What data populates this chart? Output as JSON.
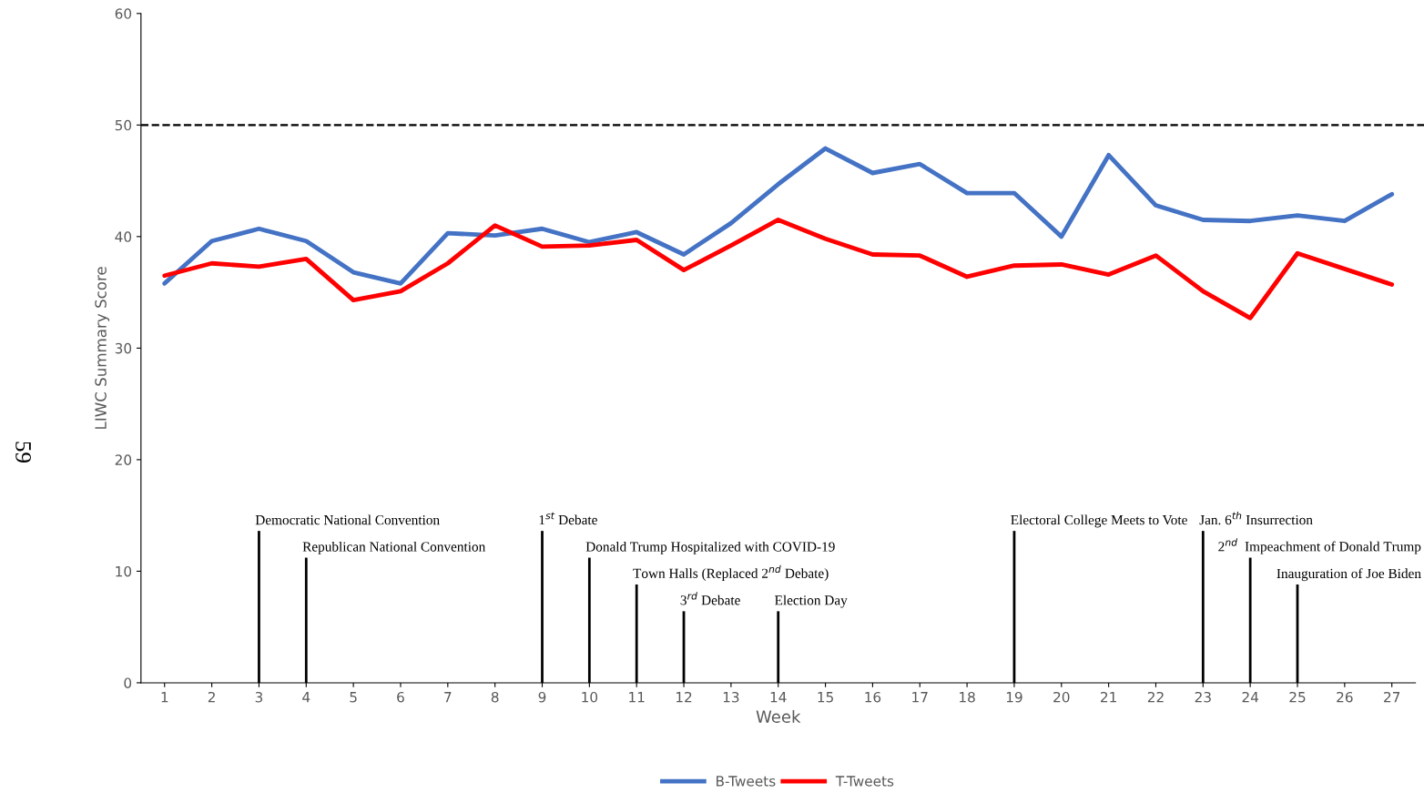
{
  "chart_data": {
    "type": "line",
    "xlabel": "Week",
    "ylabel": "LIWC Summary Score",
    "categories": [
      "1",
      "2",
      "3",
      "4",
      "5",
      "6",
      "7",
      "8",
      "9",
      "10",
      "11",
      "12",
      "13",
      "14",
      "15",
      "16",
      "17",
      "18",
      "19",
      "20",
      "21",
      "22",
      "23",
      "24",
      "25",
      "26",
      "27"
    ],
    "series": [
      {
        "name": "B-Tweets",
        "color": "#4472c4",
        "values": [
          35.8,
          39.6,
          40.7,
          39.6,
          36.8,
          35.8,
          40.3,
          40.1,
          40.7,
          39.5,
          40.4,
          38.4,
          41.2,
          44.7,
          47.9,
          45.7,
          46.5,
          43.9,
          43.9,
          40.0,
          47.3,
          42.8,
          41.5,
          41.4,
          41.9,
          41.4,
          43.8
        ]
      },
      {
        "name": "T-Tweets",
        "color": "#ff0000",
        "values": [
          36.5,
          37.6,
          37.3,
          38.0,
          34.3,
          35.1,
          37.6,
          41.0,
          39.1,
          39.2,
          39.7,
          37.0,
          39.2,
          41.5,
          39.8,
          38.4,
          38.3,
          36.4,
          37.4,
          37.5,
          36.6,
          38.3,
          35.1,
          32.7,
          38.5,
          37.1,
          35.7
        ]
      }
    ],
    "ylim": [
      0,
      60
    ],
    "yticks": [
      0,
      10,
      20,
      30,
      40,
      50,
      60
    ],
    "grid": false,
    "legend": "bottom",
    "marker": "none",
    "line_style": "solid",
    "ref_lines": [
      {
        "axis": "y",
        "value": 50,
        "color": "#000000",
        "line_style": "dashed"
      },
      {
        "axis": "x",
        "value": "3",
        "label": "Democratic National Convention"
      },
      {
        "axis": "x",
        "value": "4",
        "label": "Republican National Convention"
      },
      {
        "axis": "x",
        "value": "9",
        "label": "1$^{st}$ Debate"
      },
      {
        "axis": "x",
        "value": "10",
        "label": "Donald Trump Hospitalized with COVID-19"
      },
      {
        "axis": "x",
        "value": "11",
        "label": "Town Halls (Replaced 2$^{nd}$ Debate)"
      },
      {
        "axis": "x",
        "value": "12",
        "label": "3$^{rd}$ Debate"
      },
      {
        "axis": "x",
        "value": "14",
        "label": "Election Day"
      },
      {
        "axis": "x",
        "value": "19",
        "label": "Electoral College Meets to Vote"
      },
      {
        "axis": "x",
        "value": "23",
        "label": "Jan. 6$^{th}$ Insurrection"
      },
      {
        "axis": "x",
        "value": "24",
        "label": "2$^{nd}$  Impeachment of Donald Trump"
      },
      {
        "axis": "x",
        "value": "25",
        "label": "Inauguration of Joe Biden"
      }
    ],
    "annotations": [
      "59"
    ]
  }
}
